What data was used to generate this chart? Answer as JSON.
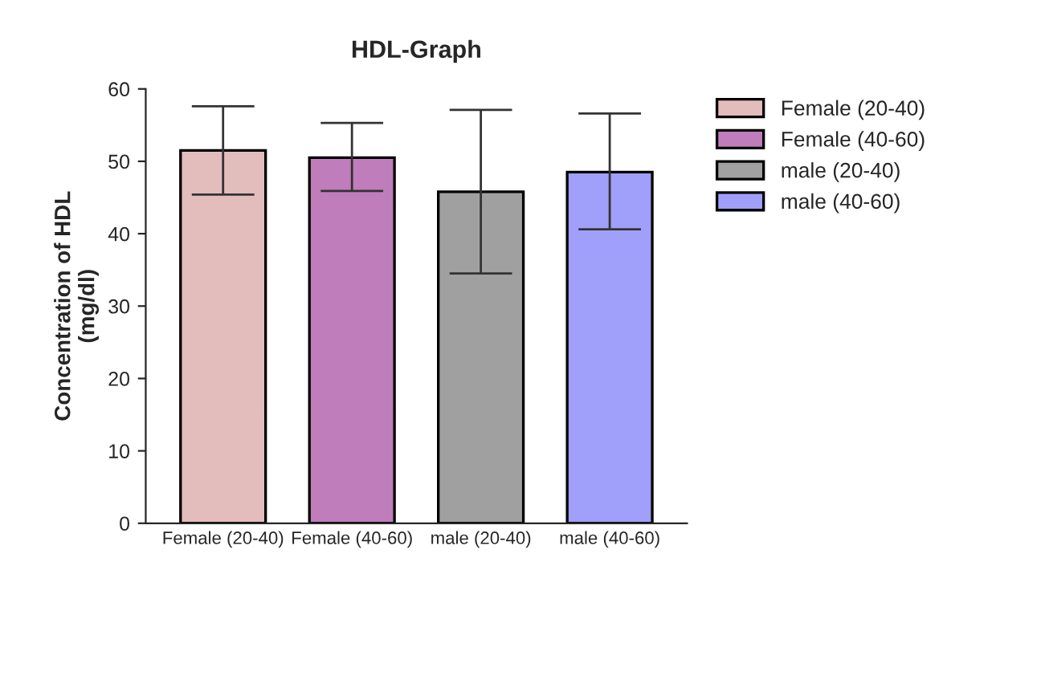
{
  "chart_data": {
    "type": "bar",
    "title": "HDL-Graph",
    "ylabel": "Concentration of HDL\n(mg/dl)",
    "categories": [
      "Female (20-40)",
      "Female (40-60)",
      "male (20-40)",
      "male (40-60)"
    ],
    "series": [
      {
        "name": "Female (20-40)",
        "color": "#e3bcbc",
        "values": [
          51.5,
          null,
          null,
          null
        ],
        "errors": [
          [
            45.4,
            57.6
          ],
          null,
          null,
          null
        ]
      },
      {
        "name": "Female (40-60)",
        "color": "#bf7dbb",
        "values": [
          null,
          50.5,
          null,
          null
        ],
        "errors": [
          null,
          [
            45.9,
            55.3
          ],
          null,
          null
        ]
      },
      {
        "name": "male (20-40)",
        "color": "#a0a0a0",
        "values": [
          null,
          null,
          45.8,
          null
        ],
        "errors": [
          null,
          null,
          [
            34.5,
            57.1
          ],
          null
        ]
      },
      {
        "name": "male (40-60)",
        "color": "#a0a0fa",
        "values": [
          null,
          null,
          null,
          48.5
        ],
        "errors": [
          null,
          null,
          null,
          [
            40.6,
            56.6
          ]
        ]
      }
    ],
    "ylim": [
      0,
      60
    ],
    "yticks": [
      0,
      10,
      20,
      30,
      40,
      50,
      60
    ],
    "grid": false,
    "legend": "right"
  }
}
